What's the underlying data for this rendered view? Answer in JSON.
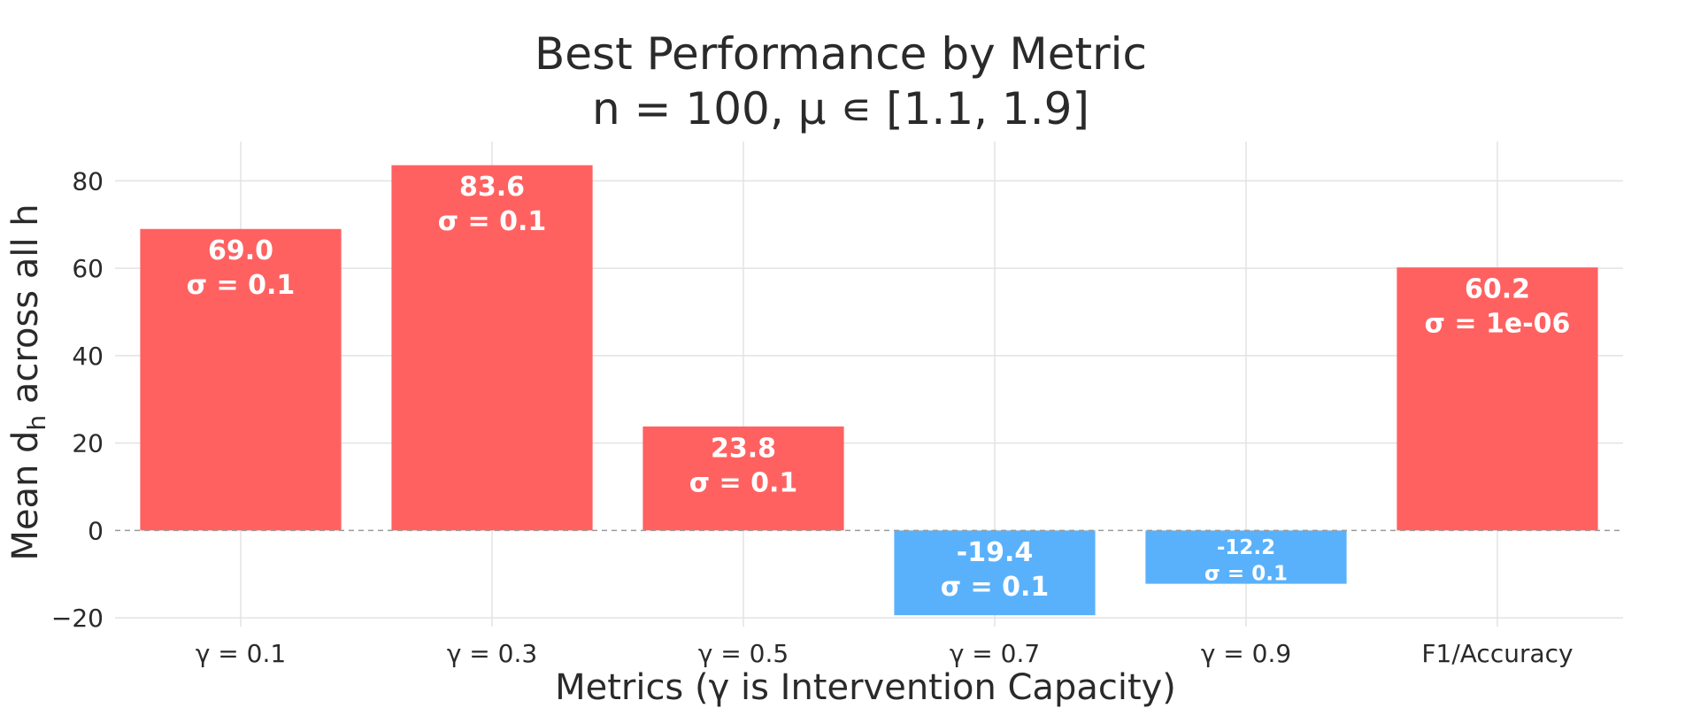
{
  "chart_data": {
    "type": "bar",
    "title": "Best Performance by Metric",
    "subtitle": "n = 100, μ ∊ [1.1, 1.9]",
    "xlabel": "Metrics (γ is Intervention Capacity)",
    "ylabel_prefix": "Mean d",
    "ylabel_sub": "h",
    "ylabel_suffix": " across all h",
    "categories": [
      "γ = 0.1",
      "γ = 0.3",
      "γ = 0.5",
      "γ = 0.7",
      "γ = 0.9",
      "F1/Accuracy"
    ],
    "values": [
      69.0,
      83.6,
      23.8,
      -19.4,
      -12.2,
      60.2
    ],
    "value_labels": [
      "69.0",
      "83.6",
      "23.8",
      "-19.4",
      "-12.2",
      "60.2"
    ],
    "sigma_labels": [
      "σ = 0.1",
      "σ = 0.1",
      "σ = 0.1",
      "σ = 0.1",
      "σ = 0.1",
      "σ = 1e-06"
    ],
    "ylim": [
      -22,
      89
    ],
    "yticks": [
      -20,
      0,
      20,
      40,
      60,
      80
    ],
    "ytick_labels": [
      "−20",
      "0",
      "20",
      "40",
      "60",
      "80"
    ],
    "grid": true,
    "zero_line": "dashed",
    "colors": {
      "positive": "#ff6161",
      "negative": "#5ab1fb",
      "grid": "#e3e3e3",
      "zero_line": "#9a9a9a",
      "text": "#2a2a2a"
    }
  }
}
